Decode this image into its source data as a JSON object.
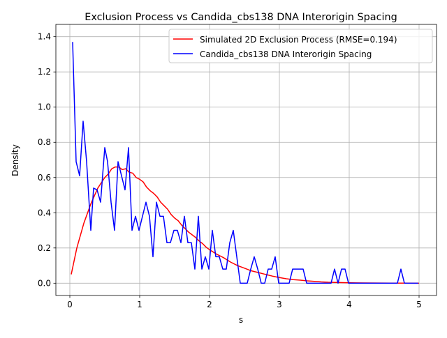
{
  "chart_data": {
    "type": "line",
    "title": "Exclusion Process vs Candida_cbs138 DNA Interorigin Spacing",
    "xlabel": "s",
    "ylabel": "Density",
    "xlim": [
      -0.2,
      5.25
    ],
    "ylim": [
      -0.07,
      1.47
    ],
    "xticks": [
      0,
      1,
      2,
      3,
      4,
      5
    ],
    "xtick_labels": [
      "0",
      "1",
      "2",
      "3",
      "4",
      "5"
    ],
    "yticks": [
      0.0,
      0.2,
      0.4,
      0.6,
      0.8,
      1.0,
      1.2,
      1.4
    ],
    "ytick_labels": [
      "0.0",
      "0.2",
      "0.4",
      "0.6",
      "0.8",
      "1.0",
      "1.2",
      "1.4"
    ],
    "grid": true,
    "legend_position": "top-right",
    "series": [
      {
        "name": "Simulated 2D Exclusion Process (RMSE=0.194)",
        "color": "#ff0000",
        "x": [
          0.02,
          0.1,
          0.2,
          0.3,
          0.4,
          0.5,
          0.55,
          0.6,
          0.65,
          0.7,
          0.75,
          0.8,
          0.85,
          0.9,
          0.95,
          1.0,
          1.05,
          1.1,
          1.15,
          1.2,
          1.25,
          1.3,
          1.35,
          1.4,
          1.45,
          1.5,
          1.55,
          1.6,
          1.65,
          1.7,
          1.75,
          1.8,
          1.85,
          1.9,
          1.95,
          2.0,
          2.1,
          2.2,
          2.3,
          2.4,
          2.5,
          2.6,
          2.7,
          2.8,
          2.9,
          3.0,
          3.1,
          3.2,
          3.3,
          3.4,
          3.5,
          3.6,
          3.7,
          3.8,
          3.9,
          4.0,
          4.2,
          4.4,
          4.6,
          4.8,
          5.0
        ],
        "y": [
          0.05,
          0.2,
          0.34,
          0.45,
          0.54,
          0.6,
          0.62,
          0.65,
          0.66,
          0.66,
          0.645,
          0.65,
          0.63,
          0.625,
          0.6,
          0.59,
          0.575,
          0.545,
          0.525,
          0.51,
          0.49,
          0.46,
          0.44,
          0.42,
          0.39,
          0.37,
          0.355,
          0.33,
          0.31,
          0.29,
          0.275,
          0.26,
          0.24,
          0.225,
          0.205,
          0.19,
          0.165,
          0.145,
          0.12,
          0.1,
          0.085,
          0.07,
          0.06,
          0.05,
          0.04,
          0.032,
          0.025,
          0.02,
          0.017,
          0.013,
          0.01,
          0.007,
          0.005,
          0.004,
          0.003,
          0.002,
          0.0015,
          0.001,
          0.0005,
          0.0002,
          0.0
        ]
      },
      {
        "name": "Candida_cbs138 DNA Interorigin Spacing",
        "color": "#0000ff",
        "x": [
          0.04,
          0.09,
          0.14,
          0.19,
          0.24,
          0.3,
          0.34,
          0.39,
          0.44,
          0.5,
          0.54,
          0.59,
          0.64,
          0.69,
          0.74,
          0.79,
          0.84,
          0.89,
          0.94,
          0.99,
          1.04,
          1.09,
          1.14,
          1.19,
          1.24,
          1.29,
          1.34,
          1.39,
          1.44,
          1.49,
          1.54,
          1.59,
          1.64,
          1.69,
          1.74,
          1.79,
          1.84,
          1.89,
          1.94,
          1.99,
          2.04,
          2.09,
          2.14,
          2.19,
          2.24,
          2.29,
          2.34,
          2.39,
          2.44,
          2.49,
          2.54,
          2.59,
          2.64,
          2.69,
          2.74,
          2.79,
          2.84,
          2.89,
          2.94,
          2.99,
          3.04,
          3.09,
          3.14,
          3.19,
          3.24,
          3.29,
          3.34,
          3.39,
          3.44,
          3.49,
          3.54,
          3.59,
          3.64,
          3.69,
          3.74,
          3.79,
          3.84,
          3.89,
          3.94,
          3.99,
          4.04,
          4.09,
          4.14,
          4.19,
          4.24,
          4.29,
          4.34,
          4.39,
          4.44,
          4.49,
          4.54,
          4.59,
          4.64,
          4.69,
          4.74,
          4.79,
          4.84,
          4.89,
          4.94,
          4.99
        ],
        "y": [
          1.37,
          0.69,
          0.61,
          0.92,
          0.69,
          0.3,
          0.54,
          0.53,
          0.46,
          0.77,
          0.69,
          0.46,
          0.3,
          0.69,
          0.61,
          0.53,
          0.77,
          0.3,
          0.38,
          0.3,
          0.38,
          0.46,
          0.38,
          0.15,
          0.46,
          0.38,
          0.38,
          0.23,
          0.23,
          0.3,
          0.3,
          0.23,
          0.38,
          0.23,
          0.23,
          0.08,
          0.38,
          0.08,
          0.15,
          0.08,
          0.3,
          0.15,
          0.15,
          0.08,
          0.08,
          0.23,
          0.3,
          0.15,
          0.0,
          0.0,
          0.0,
          0.08,
          0.15,
          0.08,
          0.0,
          0.0,
          0.08,
          0.08,
          0.15,
          0.0,
          0.0,
          0.0,
          0.0,
          0.08,
          0.08,
          0.08,
          0.08,
          0.0,
          0.0,
          0.0,
          0.0,
          0.0,
          0.0,
          0.0,
          0.0,
          0.08,
          0.0,
          0.08,
          0.08,
          0.0,
          0.0,
          0.0,
          0.0,
          0.0,
          0.0,
          0.0,
          0.0,
          0.0,
          0.0,
          0.0,
          0.0,
          0.0,
          0.0,
          0.0,
          0.08,
          0.0,
          0.0,
          0.0,
          0.0,
          0.0
        ]
      }
    ]
  }
}
